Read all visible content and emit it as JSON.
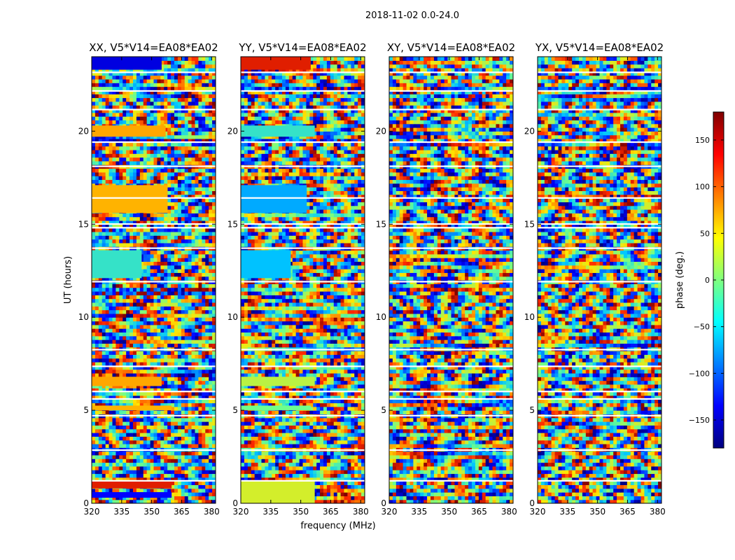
{
  "chart_data": {
    "type": "heatmap",
    "suptitle": "2018-11-02 0.0-24.0",
    "xlabel": "frequency (MHz)",
    "ylabel": "UT (hours)",
    "xlim": [
      320,
      382
    ],
    "ylim": [
      0,
      24
    ],
    "xticks": [
      320,
      335,
      350,
      365,
      380
    ],
    "yticks": [
      0,
      5,
      10,
      15,
      20
    ],
    "panels": [
      {
        "title": "XX, V5*V14=EA08*EA02",
        "coherent_blocks": [
          {
            "t0": 0.3,
            "t1": 0.6,
            "f0": 320,
            "f1": 360,
            "phase": -140
          },
          {
            "t0": 0.8,
            "t1": 1.2,
            "f0": 320,
            "f1": 360,
            "phase": 150
          },
          {
            "t0": 5.0,
            "t1": 5.25,
            "f0": 320,
            "f1": 360,
            "phase": 80
          },
          {
            "t0": 6.3,
            "t1": 6.8,
            "f0": 320,
            "f1": 355,
            "phase": 85
          },
          {
            "t0": 12.1,
            "t1": 13.6,
            "f0": 320,
            "f1": 345,
            "phase": -30
          },
          {
            "t0": 15.6,
            "t1": 17.1,
            "f0": 320,
            "f1": 358,
            "phase": 80
          },
          {
            "t0": 19.7,
            "t1": 20.3,
            "f0": 320,
            "f1": 357,
            "phase": 85
          },
          {
            "t0": 23.3,
            "t1": 24.0,
            "f0": 320,
            "f1": 355,
            "phase": -150
          }
        ]
      },
      {
        "title": "YY, V5*V14=EA08*EA02",
        "coherent_blocks": [
          {
            "t0": 0.0,
            "t1": 1.2,
            "f0": 320,
            "f1": 357,
            "phase": 40
          },
          {
            "t0": 5.0,
            "t1": 5.25,
            "f0": 320,
            "f1": 355,
            "phase": 0
          },
          {
            "t0": 6.3,
            "t1": 6.8,
            "f0": 320,
            "f1": 357,
            "phase": 30
          },
          {
            "t0": 12.1,
            "t1": 13.6,
            "f0": 320,
            "f1": 345,
            "phase": -60
          },
          {
            "t0": 15.6,
            "t1": 17.1,
            "f0": 320,
            "f1": 353,
            "phase": -70
          },
          {
            "t0": 19.7,
            "t1": 20.3,
            "f0": 320,
            "f1": 357,
            "phase": -30
          },
          {
            "t0": 23.3,
            "t1": 24.0,
            "f0": 320,
            "f1": 355,
            "phase": 150
          }
        ]
      },
      {
        "title": "XY, V5*V14=EA08*EA02",
        "coherent_blocks": []
      },
      {
        "title": "YX, V5*V14=EA08*EA02",
        "coherent_blocks": []
      }
    ],
    "colorbar": {
      "label": "phase (deg.)",
      "range": [
        -180,
        180
      ],
      "ticks": [
        150,
        100,
        50,
        0,
        -50,
        -100,
        -150
      ],
      "tick_labels": [
        "150",
        "100",
        "50",
        "0",
        "−50",
        "−100",
        "−150"
      ],
      "colormap": "jet",
      "colormap_stops": [
        "#00007f",
        "#0000ff",
        "#007fff",
        "#00ffff",
        "#7fff7f",
        "#ffff00",
        "#ff7f00",
        "#ff0000",
        "#7f0000"
      ]
    }
  }
}
